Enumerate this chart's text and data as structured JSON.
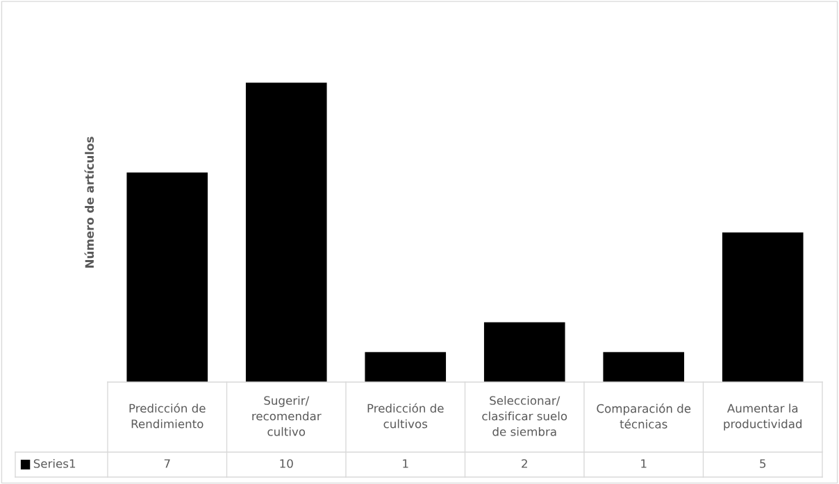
{
  "chart_data": {
    "type": "bar",
    "ylabel": "Número de artículos",
    "categories": [
      "Predicción de\nRendimiento",
      "Sugerir/\nrecomendar\ncultivo",
      "Predicción de\ncultivos",
      "Seleccionar/\nclasificar suelo\nde siembra",
      "Comparación de\ntécnicas",
      "Aumentar la\nproductividad"
    ],
    "series": [
      {
        "name": "Series1",
        "color": "#000000",
        "values": [
          7,
          10,
          1,
          2,
          1,
          5
        ]
      }
    ],
    "data_labels": true,
    "legend": "bottom"
  }
}
